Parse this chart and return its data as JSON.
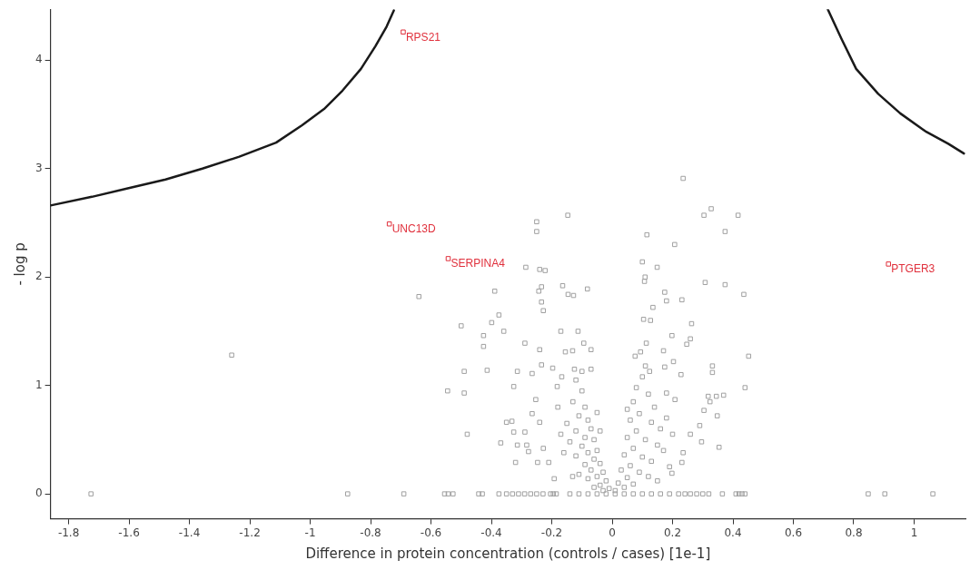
{
  "chart_data": {
    "type": "scatter",
    "xlabel": "Difference in protein concentration (controls / cases) [1e-1]",
    "ylabel": "- log p",
    "xlim": [
      -1.86,
      1.17
    ],
    "xticks": [
      -1.8,
      -1.6,
      -1.4,
      -1.2,
      -1,
      -0.8,
      -0.6,
      -0.4,
      -0.2,
      0,
      0.2,
      0.4,
      0.6,
      0.8,
      1
    ],
    "ylim": [
      -0.23,
      4.47
    ],
    "yticks": [
      0,
      1,
      2,
      3,
      4
    ],
    "grid": false,
    "legend": false,
    "marker": "square",
    "annotations": [
      {
        "text": "RPS21",
        "x": -0.692,
        "y": 4.26
      },
      {
        "text": "UNC13D",
        "x": -0.738,
        "y": 2.49
      },
      {
        "text": "SERPINA4",
        "x": -0.543,
        "y": 2.17
      },
      {
        "text": "PTGER3",
        "x": 0.915,
        "y": 2.12
      }
    ],
    "series": [
      {
        "color": "#a0a0a0",
        "x": [
          0.235,
          -0.25,
          -0.25,
          -0.147,
          0.304,
          0.328,
          0.417,
          0.374,
          0.115,
          0.207,
          -0.286,
          -0.24,
          -0.222,
          0.1,
          0.149,
          0.109,
          0.107,
          0.308,
          0.374,
          0.436,
          -0.389,
          -0.234,
          -0.243,
          -0.234,
          -0.228,
          -0.164,
          -0.146,
          -0.128,
          -0.082,
          0.174,
          0.18,
          0.231,
          0.135,
          -0.375,
          -0.399,
          -0.359,
          -0.426,
          -0.426,
          0.104,
          0.127,
          0.263,
          0.198,
          0.259,
          0.247,
          -0.289,
          -0.24,
          -0.17,
          -0.113,
          -0.155,
          -0.131,
          -0.094,
          -0.07,
          0.113,
          0.076,
          0.094,
          0.17,
          0.452,
          -0.414,
          -0.314,
          -0.265,
          -0.234,
          -0.197,
          -0.167,
          -0.125,
          -0.1,
          0.203,
          0.174,
          0.228,
          0.332,
          0.332,
          0.124,
          0.44,
          -0.326,
          -0.253,
          -0.182,
          0.18,
          0.208,
          0.318,
          0.345,
          0.369,
          0.324,
          0.304,
          0.348,
          -0.35,
          -0.332,
          -0.326,
          -0.289,
          -0.265,
          -0.24,
          -0.369,
          -0.314,
          -0.283,
          -0.277,
          -0.228,
          -0.32,
          -0.247,
          -0.21,
          -0.192,
          -0.131,
          0.29,
          0.259,
          0.296,
          0.354,
          0.235,
          0.231,
          0.198,
          -0.64,
          -1.26,
          -0.545,
          -0.5,
          -0.49,
          -0.48,
          -0.49,
          -0.12,
          -0.1,
          -0.13,
          -0.09,
          -0.11,
          -0.08,
          -0.15,
          -0.07,
          -0.12,
          -0.09,
          -0.06,
          -0.14,
          -0.1,
          -0.05,
          -0.08,
          -0.12,
          -0.06,
          -0.04,
          -0.09,
          -0.07,
          -0.03,
          -0.05,
          -0.08,
          -0.02,
          -0.04,
          -0.06,
          -0.01,
          -0.03,
          -0.11,
          -0.17,
          -0.16,
          -0.18,
          -0.07,
          -0.05,
          -0.04,
          0.1,
          0.08,
          0.12,
          0.07,
          0.14,
          0.09,
          0.06,
          0.13,
          0.16,
          0.08,
          0.05,
          0.11,
          0.15,
          0.07,
          0.04,
          0.1,
          0.13,
          0.06,
          0.03,
          0.09,
          0.05,
          0.12,
          0.02,
          0.04,
          0.07,
          0.01,
          0.18,
          0.17,
          0.2,
          0.05,
          0.11,
          0.19,
          0.15,
          -1.726,
          -0.876,
          -0.69,
          -0.555,
          -0.543,
          -0.527,
          -0.442,
          -0.43,
          -0.375,
          -0.35,
          -0.33,
          -0.31,
          -0.29,
          -0.27,
          -0.25,
          -0.229,
          -0.204,
          -0.195,
          -0.185,
          -0.14,
          -0.11,
          -0.08,
          -0.05,
          -0.02,
          0.01,
          0.04,
          0.07,
          0.1,
          0.13,
          0.16,
          0.19,
          0.22,
          0.241,
          0.259,
          0.28,
          0.3,
          0.32,
          0.365,
          0.41,
          0.42,
          0.43,
          0.44,
          0.848,
          0.903,
          1.062
        ],
        "values": [
          2.91,
          2.51,
          2.42,
          2.57,
          2.57,
          2.63,
          2.57,
          2.42,
          2.39,
          2.3,
          2.09,
          2.07,
          2.06,
          2.14,
          2.09,
          2,
          1.96,
          1.95,
          1.93,
          1.84,
          1.87,
          1.91,
          1.87,
          1.77,
          1.69,
          1.92,
          1.84,
          1.83,
          1.89,
          1.86,
          1.78,
          1.79,
          1.72,
          1.65,
          1.58,
          1.5,
          1.46,
          1.36,
          1.61,
          1.6,
          1.57,
          1.46,
          1.43,
          1.38,
          1.39,
          1.33,
          1.5,
          1.5,
          1.31,
          1.32,
          1.39,
          1.33,
          1.39,
          1.27,
          1.31,
          1.32,
          1.27,
          1.14,
          1.13,
          1.11,
          1.19,
          1.16,
          1.08,
          1.15,
          1.13,
          1.22,
          1.17,
          1.1,
          1.18,
          1.12,
          1.13,
          0.98,
          0.99,
          0.87,
          0.99,
          0.93,
          0.87,
          0.9,
          0.9,
          0.91,
          0.85,
          0.77,
          0.72,
          0.66,
          0.67,
          0.57,
          0.57,
          0.74,
          0.66,
          0.47,
          0.45,
          0.45,
          0.39,
          0.42,
          0.29,
          0.29,
          0.29,
          0.14,
          0.16,
          0.63,
          0.55,
          0.48,
          0.43,
          0.38,
          0.29,
          0.19,
          1.82,
          1.28,
          0.95,
          1.55,
          1.13,
          0.55,
          0.93,
          1.05,
          0.95,
          0.85,
          0.8,
          0.72,
          0.68,
          0.65,
          0.6,
          0.58,
          0.52,
          0.5,
          0.48,
          0.44,
          0.4,
          0.38,
          0.35,
          0.32,
          0.28,
          0.27,
          0.22,
          0.2,
          0.16,
          0.14,
          0.12,
          0.08,
          0.06,
          0.05,
          0.03,
          0.18,
          0.55,
          0.38,
          0.8,
          1.15,
          0.75,
          0.58,
          1.08,
          0.98,
          0.92,
          0.85,
          0.8,
          0.74,
          0.68,
          0.66,
          0.6,
          0.58,
          0.52,
          0.5,
          0.45,
          0.42,
          0.36,
          0.34,
          0.3,
          0.26,
          0.22,
          0.2,
          0.15,
          0.16,
          0.1,
          0.06,
          0.09,
          0.03,
          0.7,
          0.4,
          0.55,
          0.78,
          1.18,
          0.25,
          0.12,
          0,
          0,
          0,
          0,
          0,
          0,
          0,
          0,
          0,
          0,
          0,
          0,
          0,
          0,
          0,
          0,
          0,
          0,
          0,
          0,
          0,
          0,
          0,
          0,
          0,
          0,
          0,
          0,
          0,
          0,
          0,
          0,
          0,
          0,
          0,
          0,
          0,
          0,
          0,
          0,
          0,
          0,
          0,
          0,
          0
        ]
      },
      {
        "color": "#e0303c",
        "x": [
          -0.692,
          -0.738,
          -0.543,
          0.915
        ],
        "values": [
          4.26,
          2.49,
          2.17,
          2.12
        ]
      },
      {
        "type": "line",
        "color": "#1a1a1a",
        "marker": "none",
        "x": [
          -1.86,
          -1.723,
          -1.601,
          -1.479,
          -1.357,
          -1.235,
          -1.113,
          -1.027,
          -0.954,
          -0.893,
          -0.832,
          -0.784,
          -0.747,
          -0.723
        ],
        "values": [
          2.66,
          2.74,
          2.82,
          2.9,
          3,
          3.11,
          3.24,
          3.4,
          3.55,
          3.72,
          3.92,
          4.13,
          4.31,
          4.46
        ]
      },
      {
        "type": "line",
        "color": "#1a1a1a",
        "marker": "none",
        "x": [
          0.714,
          0.759,
          0.808,
          0.881,
          0.954,
          1.04,
          1.113,
          1.165
        ],
        "values": [
          4.47,
          4.2,
          3.92,
          3.69,
          3.51,
          3.34,
          3.23,
          3.14
        ]
      }
    ]
  }
}
